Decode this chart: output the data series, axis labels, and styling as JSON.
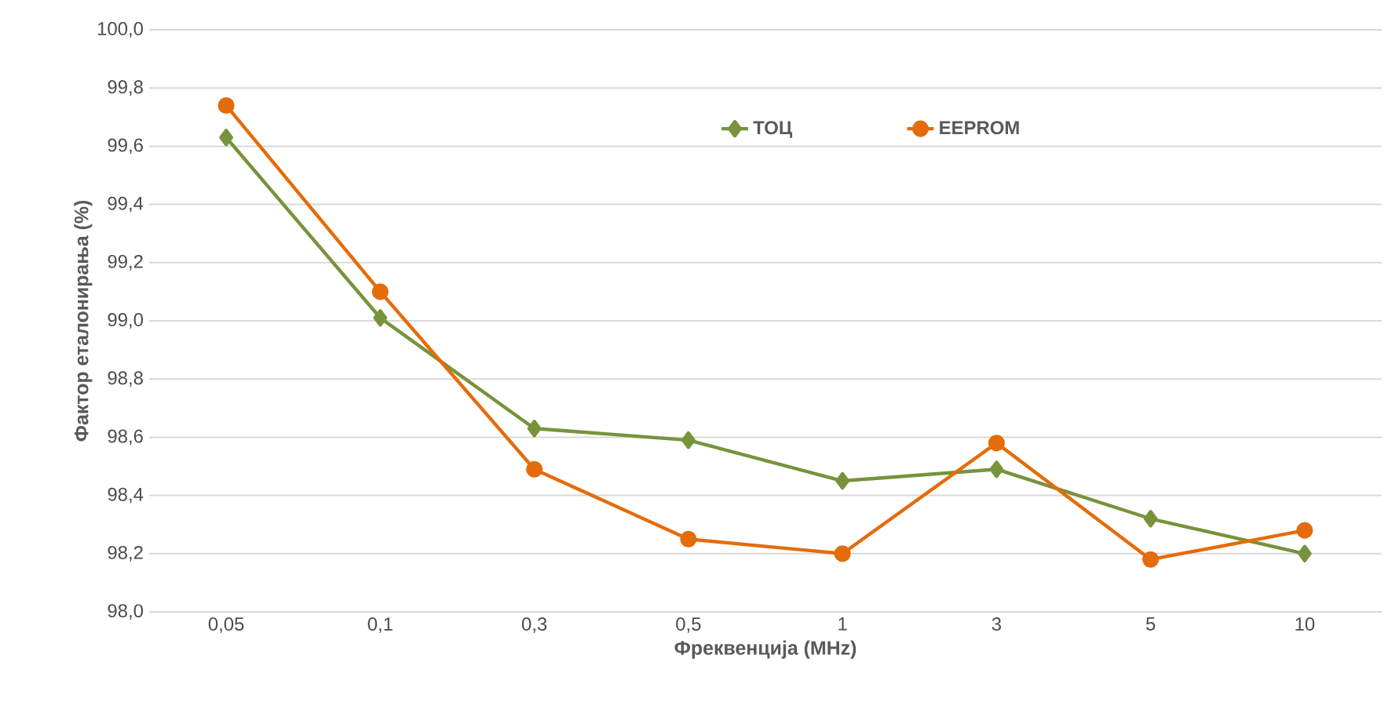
{
  "chart_data": {
    "type": "line",
    "xlabel": "Фреквенција (MHz)",
    "ylabel": "Фактор еталонирања (%)",
    "categories": [
      "0,05",
      "0,1",
      "0,3",
      "0,5",
      "1",
      "3",
      "5",
      "10"
    ],
    "series": [
      {
        "name": "ТОЦ",
        "color": "#77933c",
        "marker": "diamond",
        "values": [
          99.63,
          99.01,
          98.63,
          98.59,
          98.45,
          98.49,
          98.32,
          98.2
        ]
      },
      {
        "name": "EEPROM",
        "color": "#e46c0a",
        "marker": "circle",
        "values": [
          99.74,
          99.1,
          98.49,
          98.25,
          98.2,
          98.58,
          98.18,
          98.28
        ]
      }
    ],
    "ylim": [
      98.0,
      100.0
    ],
    "yticks": [
      {
        "value": 98.0,
        "label": "98,0"
      },
      {
        "value": 98.2,
        "label": "98,2"
      },
      {
        "value": 98.4,
        "label": "98,4"
      },
      {
        "value": 98.6,
        "label": "98,6"
      },
      {
        "value": 98.8,
        "label": "98,8"
      },
      {
        "value": 99.0,
        "label": "99,0"
      },
      {
        "value": 99.2,
        "label": "99,2"
      },
      {
        "value": 99.4,
        "label": "99,4"
      },
      {
        "value": 99.6,
        "label": "99,6"
      },
      {
        "value": 99.8,
        "label": "99,8"
      },
      {
        "value": 100.0,
        "label": "100,0"
      }
    ],
    "grid": "y",
    "legend": "top",
    "line_style": "solid"
  }
}
